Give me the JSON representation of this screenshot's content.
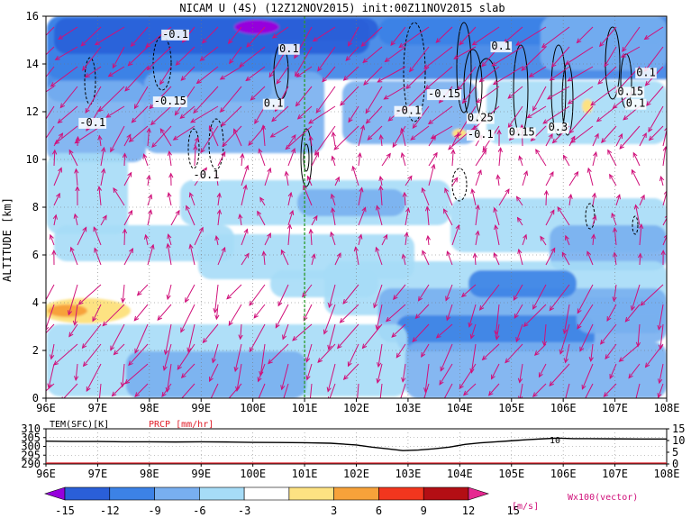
{
  "title": "NICAM U (4S) (12Z12NOV2015) init:00Z11NOV2015 slab",
  "chart_data": [
    {
      "type": "heatmap",
      "ylabel": "ALTITUDE [km]",
      "x_ticks": [
        "96E",
        "97E",
        "98E",
        "99E",
        "100E",
        "101E",
        "102E",
        "103E",
        "104E",
        "105E",
        "106E",
        "107E",
        "108E"
      ],
      "y_ticks": [
        "0",
        "2",
        "4",
        "6",
        "8",
        "10",
        "12",
        "14",
        "16"
      ],
      "xlim": [
        96,
        108
      ],
      "ylim": [
        0,
        16
      ],
      "grid": true,
      "marker_line_lon": 101,
      "contour_labels": [
        {
          "text": "-0.1",
          "lon": 98.5,
          "alt": 15.1
        },
        {
          "text": "0.1",
          "lon": 100.7,
          "alt": 14.5
        },
        {
          "text": "-0.1",
          "lon": 96.9,
          "alt": 11.4
        },
        {
          "text": "-0.15",
          "lon": 98.4,
          "alt": 12.3
        },
        {
          "text": "0.1",
          "lon": 100.4,
          "alt": 12.2
        },
        {
          "text": "-0.1",
          "lon": 99.1,
          "alt": 9.2
        },
        {
          "text": "-0.1",
          "lon": 103.0,
          "alt": 11.9
        },
        {
          "text": "-0.15",
          "lon": 103.7,
          "alt": 12.6
        },
        {
          "text": "0.1",
          "lon": 104.8,
          "alt": 14.6
        },
        {
          "text": "0.25",
          "lon": 104.4,
          "alt": 11.6
        },
        {
          "text": "-0.1",
          "lon": 104.4,
          "alt": 10.9
        },
        {
          "text": "0.15",
          "lon": 105.2,
          "alt": 11.0
        },
        {
          "text": "0.3",
          "lon": 105.9,
          "alt": 11.2
        },
        {
          "text": "0.15",
          "lon": 107.3,
          "alt": 12.7
        },
        {
          "text": "0.1",
          "lon": 107.4,
          "alt": 12.2
        },
        {
          "text": "0.1",
          "lon": 107.6,
          "alt": 13.5
        }
      ]
    },
    {
      "type": "line",
      "series": [
        {
          "name": "TEM(SFC)[K]",
          "color": "#000000",
          "x": [
            96,
            96.5,
            97,
            97.5,
            98,
            98.5,
            99,
            99.5,
            100,
            100.5,
            101,
            101.5,
            102,
            102.3,
            102.6,
            102.9,
            103.2,
            103.5,
            103.8,
            104.1,
            104.4,
            104.7,
            105,
            105.3,
            105.6,
            105.9,
            106.2,
            106.5,
            107,
            107.5,
            108
          ],
          "values": [
            303,
            302.8,
            302.8,
            302.6,
            302.6,
            302.5,
            302.6,
            302.5,
            302.3,
            302.2,
            302.1,
            301.8,
            300.8,
            299.6,
            298.6,
            297.6,
            297.9,
            298.6,
            299.6,
            301.1,
            302,
            302.6,
            303.2,
            303.8,
            304.3,
            304.7,
            304.4,
            304.4,
            304.3,
            304.2,
            304.2
          ]
        },
        {
          "name": "PRCP [mm/hr]",
          "color": "#e0202a",
          "x": [
            96,
            108
          ],
          "values": [
            0,
            0
          ]
        }
      ],
      "y_left_ticks": [
        "290",
        "295",
        "300",
        "305",
        "310"
      ],
      "y_right_ticks": [
        "0",
        "5",
        "10",
        "15"
      ],
      "x_ticks": [
        "96E",
        "97E",
        "98E",
        "99E",
        "100E",
        "101E",
        "102E",
        "103E",
        "104E",
        "105E",
        "106E",
        "107E",
        "108E"
      ],
      "annotation": "10",
      "ylim_left": [
        290,
        310
      ],
      "ylim_right": [
        0,
        15
      ]
    }
  ],
  "colorbar": {
    "ticks": [
      "-15",
      "-12",
      "-9",
      "-6",
      "-3",
      "3",
      "6",
      "9",
      "12",
      "15"
    ],
    "unit": "[m/s]",
    "colors": [
      "#9600dc",
      "#2a5fd8",
      "#3c82e6",
      "#78aff0",
      "#a6dcf7",
      "#ffffff",
      "#fde282",
      "#f7a23a",
      "#f2361e",
      "#b30e14",
      "#e62890"
    ]
  },
  "vector_label": "Wx100(vector)"
}
